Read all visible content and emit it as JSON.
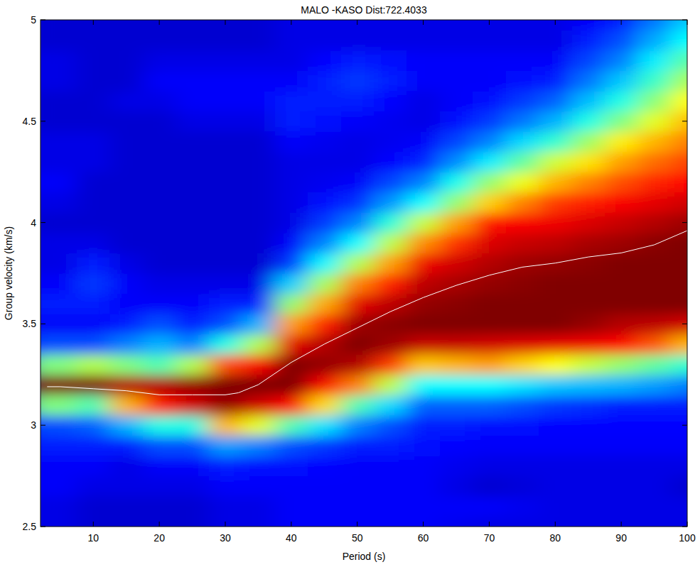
{
  "chart_data": {
    "type": "heatmap",
    "title": "MALO -KASO Dist:722.4033",
    "x_label": "Period (s)",
    "y_label": "Group velocity (km/s)",
    "xlim": [
      2,
      100
    ],
    "ylim": [
      2.5,
      5
    ],
    "xticks": [
      10,
      20,
      30,
      40,
      50,
      60,
      70,
      80,
      90,
      100
    ],
    "yticks": [
      2.5,
      3,
      3.5,
      4,
      4.5,
      5
    ],
    "grid": false,
    "zlim": [
      0,
      1
    ],
    "x": [
      5,
      10,
      15,
      20,
      25,
      30,
      35,
      40,
      45,
      50,
      55,
      60,
      65,
      70,
      75,
      80,
      85,
      90,
      95,
      100
    ],
    "y": [
      2.5,
      2.6,
      2.7,
      2.8,
      2.9,
      3.0,
      3.1,
      3.2,
      3.3,
      3.4,
      3.5,
      3.6,
      3.7,
      3.8,
      3.9,
      4.0,
      4.1,
      4.2,
      4.3,
      4.4,
      4.5,
      4.6,
      4.7,
      4.8,
      4.9,
      5.0
    ],
    "z": [
      [
        0.1,
        0.1,
        0.12,
        0.12,
        0.15,
        0.2,
        0.5,
        1.0,
        0.5,
        0.2,
        0.12,
        0.15,
        0.12,
        0.1,
        0.1,
        0.08,
        0.1,
        0.12,
        0.1,
        0.1,
        0.08,
        0.08,
        0.1,
        0.1,
        0.08,
        0.08
      ],
      [
        0.08,
        0.08,
        0.1,
        0.12,
        0.15,
        0.22,
        0.45,
        1.0,
        0.55,
        0.2,
        0.12,
        0.15,
        0.18,
        0.15,
        0.1,
        0.08,
        0.08,
        0.08,
        0.1,
        0.1,
        0.08,
        0.08,
        0.08,
        0.08,
        0.08,
        0.08
      ],
      [
        0.08,
        0.08,
        0.1,
        0.1,
        0.15,
        0.3,
        0.7,
        0.95,
        0.5,
        0.25,
        0.15,
        0.12,
        0.12,
        0.1,
        0.08,
        0.08,
        0.08,
        0.08,
        0.08,
        0.08,
        0.08,
        0.1,
        0.08,
        0.08,
        0.08,
        0.08
      ],
      [
        0.08,
        0.08,
        0.1,
        0.12,
        0.2,
        0.4,
        0.85,
        0.95,
        0.45,
        0.3,
        0.2,
        0.12,
        0.1,
        0.08,
        0.08,
        0.08,
        0.08,
        0.08,
        0.08,
        0.08,
        0.08,
        0.1,
        0.12,
        0.1,
        0.08,
        0.08
      ],
      [
        0.08,
        0.08,
        0.1,
        0.12,
        0.2,
        0.4,
        0.92,
        0.98,
        0.55,
        0.25,
        0.15,
        0.12,
        0.1,
        0.08,
        0.08,
        0.08,
        0.08,
        0.08,
        0.08,
        0.08,
        0.1,
        0.12,
        0.12,
        0.1,
        0.08,
        0.08
      ],
      [
        0.1,
        0.1,
        0.12,
        0.15,
        0.28,
        0.7,
        0.98,
        1.0,
        0.8,
        0.4,
        0.2,
        0.15,
        0.1,
        0.08,
        0.08,
        0.08,
        0.08,
        0.08,
        0.08,
        0.08,
        0.1,
        0.12,
        0.12,
        0.1,
        0.08,
        0.08
      ],
      [
        0.1,
        0.1,
        0.12,
        0.14,
        0.25,
        0.6,
        0.92,
        1.0,
        0.88,
        0.55,
        0.3,
        0.15,
        0.1,
        0.08,
        0.08,
        0.08,
        0.08,
        0.08,
        0.08,
        0.08,
        0.1,
        0.12,
        0.12,
        0.1,
        0.08,
        0.08
      ],
      [
        0.12,
        0.12,
        0.12,
        0.14,
        0.2,
        0.45,
        0.875,
        1.0,
        1.0,
        0.9,
        0.72,
        0.52,
        0.33,
        0.18,
        0.12,
        0.1,
        0.1,
        0.1,
        0.1,
        0.12,
        0.15,
        0.15,
        0.12,
        0.1,
        0.1,
        0.1
      ],
      [
        0.12,
        0.12,
        0.12,
        0.13,
        0.18,
        0.35,
        0.66,
        0.88,
        0.98,
        0.95,
        0.85,
        0.71,
        0.54,
        0.37,
        0.25,
        0.18,
        0.14,
        0.11,
        0.1,
        0.11,
        0.14,
        0.15,
        0.15,
        0.13,
        0.1,
        0.1
      ],
      [
        0.12,
        0.12,
        0.12,
        0.12,
        0.15,
        0.25,
        0.45,
        0.75,
        0.95,
        1.0,
        0.97,
        0.9,
        0.75,
        0.55,
        0.375,
        0.25,
        0.17,
        0.12,
        0.1,
        0.1,
        0.12,
        0.15,
        0.18,
        0.15,
        0.1,
        0.1
      ],
      [
        0.12,
        0.12,
        0.12,
        0.12,
        0.15,
        0.2,
        0.34,
        0.56,
        0.82,
        0.97,
        0.99,
        0.94,
        0.85,
        0.72,
        0.56,
        0.41,
        0.27,
        0.19,
        0.13,
        0.11,
        0.11,
        0.13,
        0.15,
        0.14,
        0.1,
        0.1
      ],
      [
        0.12,
        0.12,
        0.12,
        0.12,
        0.14,
        0.15,
        0.22,
        0.375,
        0.68,
        0.93,
        1.0,
        0.98,
        0.94,
        0.89,
        0.74,
        0.57,
        0.375,
        0.25,
        0.16,
        0.12,
        0.1,
        0.1,
        0.12,
        0.12,
        0.1,
        0.1
      ],
      [
        0.11,
        0.12,
        0.1,
        0.11,
        0.13,
        0.15,
        0.22,
        0.375,
        0.7,
        0.93,
        1.0,
        0.99,
        0.96,
        0.92,
        0.83,
        0.72,
        0.52,
        0.39,
        0.26,
        0.19,
        0.14,
        0.12,
        0.12,
        0.12,
        0.1,
        0.1
      ],
      [
        0.1,
        0.12,
        0.08,
        0.1,
        0.12,
        0.14,
        0.22,
        0.375,
        0.72,
        0.92,
        1.0,
        1.0,
        0.98,
        0.95,
        0.91,
        0.86,
        0.67,
        0.52,
        0.36,
        0.25,
        0.18,
        0.14,
        0.12,
        0.12,
        0.1,
        0.1
      ],
      [
        0.1,
        0.11,
        0.09,
        0.1,
        0.12,
        0.14,
        0.2,
        0.35,
        0.67,
        0.91,
        1.0,
        1.0,
        0.99,
        0.97,
        0.93,
        0.88,
        0.75,
        0.61,
        0.47,
        0.34,
        0.24,
        0.18,
        0.14,
        0.12,
        0.1,
        0.1
      ],
      [
        0.1,
        0.1,
        0.1,
        0.1,
        0.12,
        0.13,
        0.18,
        0.32,
        0.625,
        0.9,
        1.0,
        1.0,
        1.0,
        0.98,
        0.94,
        0.89,
        0.82,
        0.7,
        0.58,
        0.42,
        0.3,
        0.22,
        0.15,
        0.12,
        0.1,
        0.1
      ],
      [
        0.1,
        0.1,
        0.1,
        0.1,
        0.12,
        0.13,
        0.17,
        0.31,
        0.57,
        0.89,
        0.98,
        1.0,
        1.0,
        0.99,
        0.96,
        0.91,
        0.85,
        0.75,
        0.65,
        0.53,
        0.4,
        0.31,
        0.24,
        0.19,
        0.15,
        0.12
      ],
      [
        0.1,
        0.1,
        0.1,
        0.1,
        0.12,
        0.13,
        0.15,
        0.3,
        0.52,
        0.875,
        0.95,
        1.0,
        1.0,
        1.0,
        0.97,
        0.93,
        0.88,
        0.8,
        0.72,
        0.64,
        0.5,
        0.4,
        0.32,
        0.25,
        0.2,
        0.15
      ],
      [
        0.1,
        0.1,
        0.1,
        0.1,
        0.12,
        0.13,
        0.15,
        0.28,
        0.47,
        0.79,
        0.94,
        1.0,
        1.0,
        1.0,
        0.99,
        0.95,
        0.9,
        0.84,
        0.77,
        0.7,
        0.6,
        0.51,
        0.43,
        0.36,
        0.29,
        0.24
      ],
      [
        0.1,
        0.1,
        0.08,
        0.1,
        0.12,
        0.13,
        0.15,
        0.25,
        0.42,
        0.7,
        0.92,
        1.0,
        1.0,
        1.0,
        1.0,
        0.97,
        0.92,
        0.875,
        0.81,
        0.75,
        0.69,
        0.625,
        0.54,
        0.46,
        0.375,
        0.32
      ]
    ],
    "series": [
      {
        "type": "line",
        "color": "#ffffff",
        "x": [
          3,
          5,
          10,
          15,
          20,
          25,
          30,
          32,
          35,
          40,
          45,
          50,
          55,
          60,
          65,
          70,
          75,
          80,
          85,
          90,
          95,
          100
        ],
        "values": [
          3.19,
          3.19,
          3.18,
          3.17,
          3.15,
          3.15,
          3.15,
          3.16,
          3.2,
          3.31,
          3.4,
          3.48,
          3.56,
          3.63,
          3.69,
          3.74,
          3.78,
          3.8,
          3.83,
          3.85,
          3.89,
          3.96
        ]
      }
    ]
  }
}
